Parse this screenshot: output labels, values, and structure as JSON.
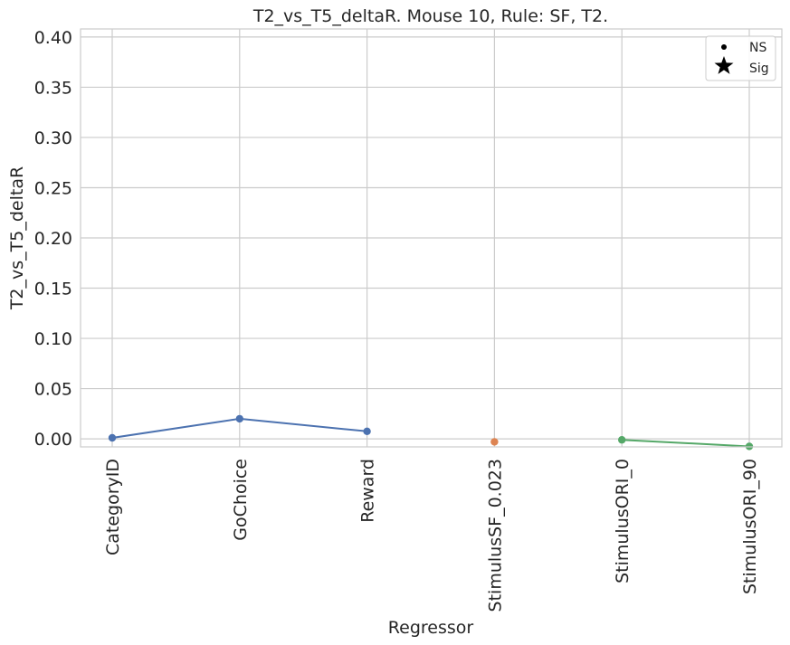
{
  "chart_data": {
    "type": "line",
    "title": "T2_vs_T5_deltaR. Mouse 10, Rule: SF, T2.",
    "xlabel": "Regressor",
    "ylabel": "T2_vs_T5_deltaR",
    "categories": [
      "CategoryID",
      "GoChoice",
      "Reward",
      "StimulusSF_0.023",
      "StimulusORI_0",
      "StimulusORI_90"
    ],
    "y_ticks": [
      "0.00",
      "0.05",
      "0.10",
      "0.15",
      "0.20",
      "0.25",
      "0.30",
      "0.35",
      "0.40"
    ],
    "ylim": [
      -0.008,
      0.408
    ],
    "grid": true,
    "series": [
      {
        "color": "#4c72b0",
        "points": [
          {
            "x": "CategoryID",
            "y": 0.001
          },
          {
            "x": "GoChoice",
            "y": 0.02
          },
          {
            "x": "Reward",
            "y": 0.0075
          }
        ]
      },
      {
        "color": "#dd8452",
        "points": [
          {
            "x": "StimulusSF_0.023",
            "y": -0.003
          }
        ]
      },
      {
        "color": "#55a868",
        "points": [
          {
            "x": "StimulusORI_0",
            "y": -0.001
          },
          {
            "x": "StimulusORI_90",
            "y": -0.0075
          }
        ]
      }
    ],
    "legend": {
      "position": "top-right",
      "entries": [
        {
          "label": "NS",
          "marker": "dot-icon"
        },
        {
          "label": "Sig",
          "marker": "star-icon"
        }
      ]
    }
  }
}
